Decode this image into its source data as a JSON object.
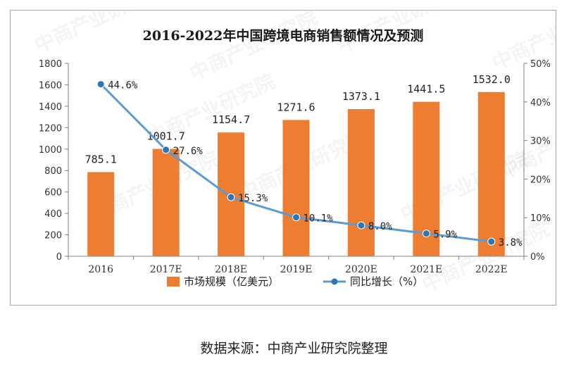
{
  "chart_data": {
    "type": "bar",
    "title": "2016-2022年中国跨境电商销售额情况及预测",
    "categories": [
      "2016",
      "2017E",
      "2018E",
      "2019E",
      "2020E",
      "2021E",
      "2022E"
    ],
    "series": [
      {
        "name": "市场规模（亿美元）",
        "type": "bar",
        "axis": "left",
        "values": [
          785.1,
          1001.7,
          1154.7,
          1271.6,
          1373.1,
          1441.5,
          1532.0
        ],
        "labels": [
          "785.1",
          "1001.7",
          "1154.7",
          "1271.6",
          "1373.1",
          "1441.5",
          "1532.0"
        ],
        "color": "#ed7d31"
      },
      {
        "name": "同比增长（%）",
        "type": "line",
        "axis": "right",
        "values": [
          44.6,
          27.6,
          15.3,
          10.1,
          8.0,
          5.9,
          3.8
        ],
        "labels": [
          "44.6%",
          "27.6%",
          "15.3%",
          "10.1%",
          "8.0%",
          "5.9%",
          "3.8%"
        ],
        "color": "#5b9bd5"
      }
    ],
    "y_left": {
      "ylim": [
        0,
        1800
      ],
      "ticks": [
        0,
        200,
        400,
        600,
        800,
        1000,
        1200,
        1400,
        1600,
        1800
      ],
      "tick_labels": [
        "0",
        "200",
        "400",
        "600",
        "800",
        "1000",
        "1200",
        "1400",
        "1600",
        "1800"
      ]
    },
    "y_right": {
      "ylim": [
        0,
        50
      ],
      "ticks": [
        0,
        10,
        20,
        30,
        40,
        50
      ],
      "tick_labels": [
        "0%",
        "10%",
        "20%",
        "30%",
        "40%",
        "50%"
      ]
    },
    "grid": false,
    "legend": "bottom",
    "watermark": "中商产业研究院"
  },
  "source_note": "数据来源：中商产业研究院整理"
}
